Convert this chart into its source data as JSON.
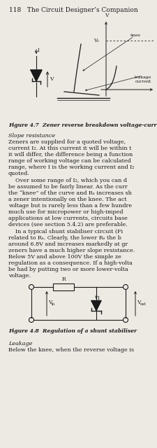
{
  "title_line": "118   The Circuit Designer’s Companion",
  "fig47_caption": "Figure 4.7  Zener reverse breakdown voltage-curr",
  "fig48_caption": "Figure 4.8  Regulation of a shunt stabiliser",
  "slope_heading": "Slope resistance",
  "leakage_heading": "Leakage",
  "leakage_text": "Below the knee, when the reverse voltage is",
  "lines1": [
    "Zeners are supplied for a quoted voltage,",
    "current I₂. At this current it will be within t",
    "it will differ, the difference being a function",
    "range of working voltage can be calculated",
    "range, where I is the working current and I₂",
    "quoted."
  ],
  "lines2": [
    "    Over some range of I₂, which you can d",
    "be assumed to be fairly linear. As the curr",
    "the “knee” of the curve and Rₛ increases sh",
    "a zener intentionally on the knee. The act",
    "voltage but is rarely less than a few hundre",
    "much use for micropower or high-imped",
    "applications at low currents, circuits base",
    "devices (see section 5.4.2) are preferable."
  ],
  "lines3": [
    "    In a typical shunt stabiliser circuit (Fi",
    "related to Rₛ. Clearly, the lower Rₛ the b",
    "around 6.8V and increases markedly at gr",
    "zeners have a much higher slope resistance.",
    "Below 5V and above 100V the simple ze",
    "regulation as a consequence. If a high-volta",
    "be had by putting two or more lower-volta",
    "voltage."
  ],
  "bg_color": "#edeae4",
  "text_color": "#1a1a1a",
  "line_color": "#1a1a1a",
  "fig_width": 226,
  "fig_height": 640,
  "dpi": 100
}
